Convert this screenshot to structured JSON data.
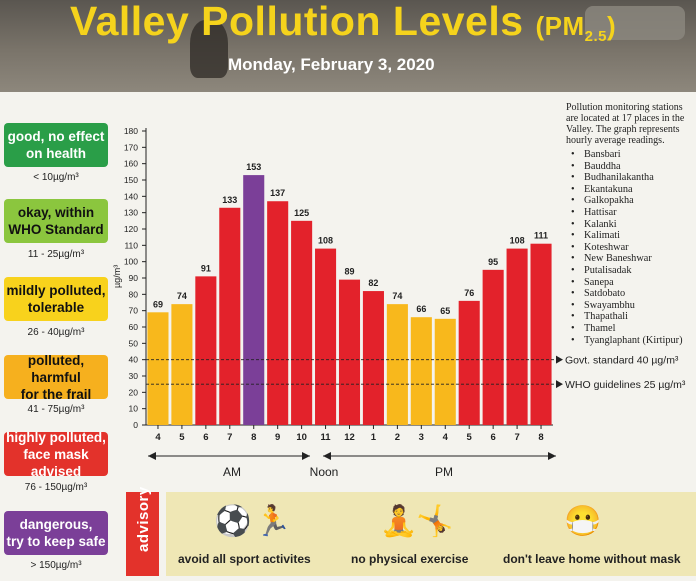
{
  "header": {
    "title": "Valley Pollution Levels",
    "pm_label": "(PM",
    "pm_sub": "2.5",
    "pm_close": ")",
    "date": "Monday, February 3, 2020"
  },
  "legend": [
    {
      "label_1": "good, no effect",
      "label_2": "on health",
      "range": "< 10µg/m³",
      "color": "#2a9e48"
    },
    {
      "label_1": "okay, within",
      "label_2": "WHO Standard",
      "range": "11 - 25µg/m³",
      "color": "#8bc63e"
    },
    {
      "label_1": "mildly polluted,",
      "label_2": "tolerable",
      "range": "26 - 40µg/m³",
      "color": "#f8d21c"
    },
    {
      "label_1": "polluted, harmful",
      "label_2": "for the frail",
      "range": "41 - 75µg/m³",
      "color": "#f6b01e"
    },
    {
      "label_1": "highly polluted,",
      "label_2": "face mask advised",
      "range": "76 - 150µg/m³",
      "color": "#e3322b"
    },
    {
      "label_1": "dangerous,",
      "label_2": "try to keep safe",
      "range": "> 150µg/m³",
      "color": "#7b3f98"
    }
  ],
  "stations": {
    "note": "Pollution monitoring stations are located at 17 places in the Valley. The graph represents hourly average readings.",
    "list": [
      "Bansbari",
      "Bauddha",
      "Budhanilakantha",
      "Ekantakuna",
      "Galkopakha",
      "Hattisar",
      "Kalanki",
      "Kalimati",
      "Koteshwar",
      "New Baneshwar",
      "Putalisadak",
      "Sanepa",
      "Satdobato",
      "Swayambhu",
      "Thapathali",
      "Thamel",
      "Tyanglaphant (Kirtipur)"
    ]
  },
  "chart_data": {
    "type": "bar",
    "categories": [
      "4",
      "5",
      "6",
      "7",
      "8",
      "9",
      "10",
      "11",
      "12",
      "1",
      "2",
      "3",
      "4",
      "5",
      "6",
      "7",
      "8"
    ],
    "values": [
      69,
      74,
      91,
      133,
      153,
      137,
      125,
      108,
      89,
      82,
      74,
      66,
      65,
      76,
      95,
      108,
      111
    ],
    "bar_colors": [
      "#f8b81c",
      "#f8b81c",
      "#e3222b",
      "#e3222b",
      "#7b3f98",
      "#e3222b",
      "#e3222b",
      "#e3222b",
      "#e3222b",
      "#e3222b",
      "#f8b81c",
      "#f8b81c",
      "#f8b81c",
      "#e3222b",
      "#e3222b",
      "#e3222b",
      "#e3222b"
    ],
    "ylabel": "µg/m³",
    "ylim": [
      0,
      180
    ],
    "yticks": [
      0,
      10,
      20,
      30,
      40,
      50,
      60,
      70,
      80,
      90,
      100,
      110,
      120,
      130,
      140,
      150,
      160,
      170,
      180
    ],
    "reference_lines": [
      {
        "value": 40,
        "label": "Govt. standard 40 µg/m³"
      },
      {
        "value": 25,
        "label": "WHO guidelines 25 µg/m³"
      }
    ],
    "periods": [
      {
        "label": "AM"
      },
      {
        "label": "Noon"
      },
      {
        "label": "PM"
      }
    ]
  },
  "advisory": {
    "tag": "advisory",
    "items": [
      {
        "label": "avoid all sport activites",
        "icon": "sport-icon"
      },
      {
        "label": "no physical exercise",
        "icon": "exercise-icon"
      },
      {
        "label": "don't leave home without mask",
        "icon": "mask-icon"
      }
    ]
  }
}
